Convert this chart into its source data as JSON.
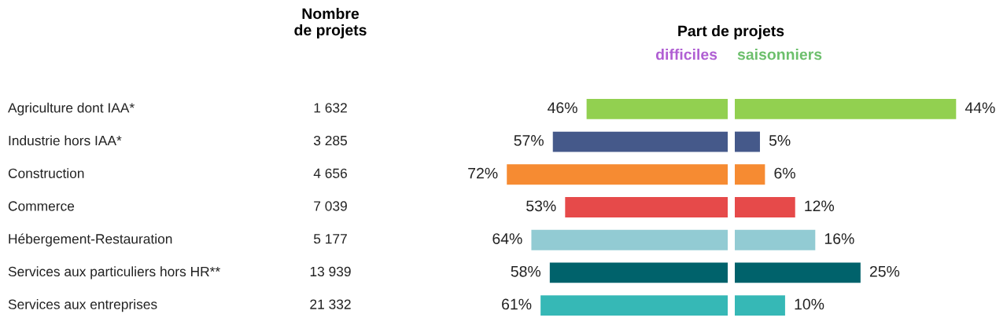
{
  "chart_data": [
    {
      "type": "other",
      "title": "Nombre\nde projets",
      "categories": [
        "Agriculture dont IAA*",
        "Industrie hors IAA*",
        "Construction",
        "Commerce",
        "Hébergement-Restauration",
        "Services aux particuliers hors HR**",
        "Services aux entreprises"
      ],
      "values": [
        1632,
        3285,
        4656,
        7039,
        5177,
        13939,
        21332
      ],
      "data_labels": true
    },
    {
      "type": "bar",
      "orientation": "horizontal",
      "title": "Part de projets",
      "subtitle": "difficiles",
      "categories": [
        null,
        null,
        null,
        null,
        null,
        null,
        null
      ],
      "values": [
        46,
        57,
        72,
        53,
        64,
        58,
        61
      ],
      "colors": [
        "#92d050",
        "#45598a",
        "#f68b32",
        "#e64a4a",
        "#92cbd3",
        "#00626b",
        "#36b8b6"
      ],
      "value_labels": [
        "46%",
        "57%",
        "72%",
        "53%",
        "64%",
        "58%",
        "61%"
      ]
    },
    {
      "type": "bar",
      "orientation": "horizontal",
      "subtitle": "saisonniers",
      "categories": [
        null,
        null,
        null,
        null,
        null,
        null,
        null
      ],
      "values": [
        44,
        5,
        6,
        12,
        16,
        25,
        10
      ],
      "colors": [
        "#92d050",
        "#45598a",
        "#f68b32",
        "#e64a4a",
        "#92cbd3",
        "#00626b",
        "#36b8b6"
      ],
      "value_labels": [
        "44%",
        "5%",
        "6%",
        "12%",
        "16%",
        "25%",
        "10%"
      ]
    }
  ]
}
